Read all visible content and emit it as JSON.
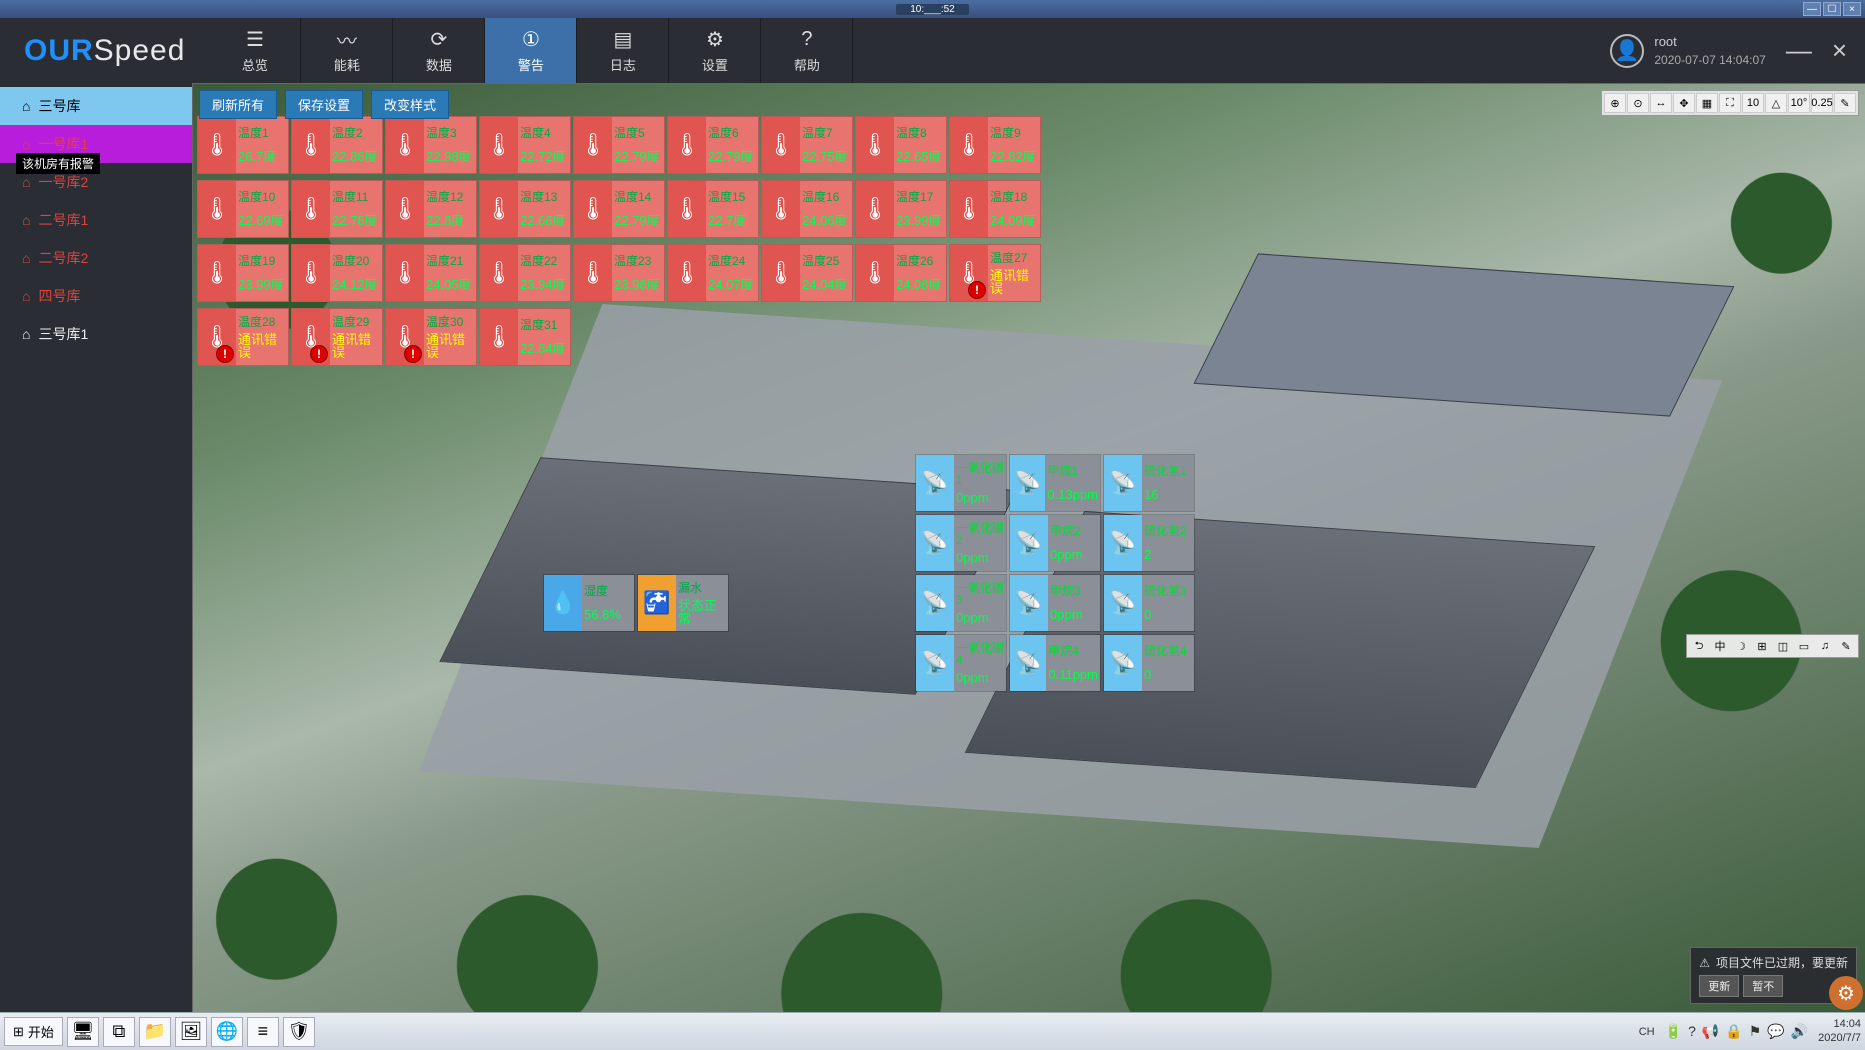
{
  "window": {
    "title_time": "10:___:52",
    "minimize": "—",
    "maximize": "☐",
    "close": "×"
  },
  "app": {
    "logo_part1": "OUR",
    "logo_part2": "Speed",
    "user_name": "root",
    "user_time": "2020-07-07 14:04:07"
  },
  "nav": [
    {
      "icon": "☰",
      "label": "总览"
    },
    {
      "icon": "〰",
      "label": "能耗"
    },
    {
      "icon": "⟳",
      "label": "数据"
    },
    {
      "icon": "①",
      "label": "警告",
      "active": true
    },
    {
      "icon": "▤",
      "label": "日志"
    },
    {
      "icon": "⚙",
      "label": "设置"
    },
    {
      "icon": "?",
      "label": "帮助"
    }
  ],
  "sidebar": {
    "tooltip": "该机房有报警",
    "items": [
      {
        "label": "三号库",
        "state": "active"
      },
      {
        "label": "一号库1",
        "state": "magenta"
      },
      {
        "label": "一号库2",
        "state": "red"
      },
      {
        "label": "二号库1",
        "state": "red"
      },
      {
        "label": "二号库2",
        "state": "red"
      },
      {
        "label": "四号库",
        "state": "red"
      },
      {
        "label": "三号库1",
        "state": "white"
      }
    ]
  },
  "actions": {
    "refresh": "刷新所有",
    "save": "保存设置",
    "style": "改变样式"
  },
  "vp_toolbar": [
    "⊕",
    "⊙",
    "↔",
    "✥",
    "▦",
    "⛶",
    "10",
    "△",
    "10°",
    "0.25",
    "✎"
  ],
  "vp_toolbar2": [
    "⮌",
    "中",
    "☽",
    "⊞",
    "◫",
    "▭",
    "♫",
    "✎"
  ],
  "temps": {
    "row1": [
      {
        "name": "温度1",
        "val": "26.7度"
      },
      {
        "name": "温度2",
        "val": "22.86度"
      },
      {
        "name": "温度3",
        "val": "22.98度"
      },
      {
        "name": "温度4",
        "val": "22.72度"
      },
      {
        "name": "温度5",
        "val": "22.79度"
      },
      {
        "name": "温度6",
        "val": "22.79度"
      },
      {
        "name": "温度7",
        "val": "22.75度"
      },
      {
        "name": "温度8",
        "val": "22.65度"
      },
      {
        "name": "温度9",
        "val": "22.82度"
      }
    ],
    "row2": [
      {
        "name": "温度10",
        "val": "22.69度"
      },
      {
        "name": "温度11",
        "val": "22.76度"
      },
      {
        "name": "温度12",
        "val": "22.8度"
      },
      {
        "name": "温度13",
        "val": "22.66度"
      },
      {
        "name": "温度14",
        "val": "22.79度"
      },
      {
        "name": "温度15",
        "val": "22.7度"
      },
      {
        "name": "温度16",
        "val": "24.06度"
      },
      {
        "name": "温度17",
        "val": "23.99度"
      },
      {
        "name": "温度18",
        "val": "24.09度"
      }
    ],
    "row3": [
      {
        "name": "温度19",
        "val": "23.99度"
      },
      {
        "name": "温度20",
        "val": "24.12度"
      },
      {
        "name": "温度21",
        "val": "24.05度"
      },
      {
        "name": "温度22",
        "val": "23.94度"
      },
      {
        "name": "温度23",
        "val": "23.98度"
      },
      {
        "name": "温度24",
        "val": "24.07度"
      },
      {
        "name": "温度25",
        "val": "24.04度"
      },
      {
        "name": "温度26",
        "val": "24.08度"
      },
      {
        "name": "温度27",
        "val": "通讯错误",
        "err": true
      }
    ],
    "row4": [
      {
        "name": "温度28",
        "val": "通讯错误",
        "err": true
      },
      {
        "name": "温度29",
        "val": "通讯错误",
        "err": true
      },
      {
        "name": "温度30",
        "val": "通讯错误",
        "err": true
      },
      {
        "name": "温度31",
        "val": "22.84度"
      }
    ]
  },
  "gas": [
    {
      "name": "一氧化碳1",
      "val": "0ppm"
    },
    {
      "name": "甲烷1",
      "val": "0.13ppm"
    },
    {
      "name": "硫化氢1",
      "val": "16"
    },
    {
      "name": "一氧化碳2",
      "val": "0ppm"
    },
    {
      "name": "甲烷2",
      "val": "0ppm"
    },
    {
      "name": "硫化氢2",
      "val": "2"
    },
    {
      "name": "一氧化碳3",
      "val": "0ppm"
    },
    {
      "name": "甲烷3",
      "val": "0ppm"
    },
    {
      "name": "硫化氢3",
      "val": "0"
    },
    {
      "name": "一氧化碳4",
      "val": "0ppm"
    },
    {
      "name": "甲烷4",
      "val": "0.11ppm"
    },
    {
      "name": "硫化氢4",
      "val": "0"
    }
  ],
  "humid": {
    "name": "湿度",
    "val": "56.8%"
  },
  "water": {
    "name": "漏水",
    "val": "状态正常"
  },
  "notice": {
    "text": "项目文件已过期，要更新",
    "btn_update": "更新",
    "btn_later": "暂不"
  },
  "taskbar": {
    "start": "开始",
    "apps": [
      "🖥",
      "⧉",
      "📁",
      "🖼",
      "🌐",
      "≡",
      "🛡"
    ],
    "lang": "CH",
    "tray_icons": [
      "🔋",
      "?",
      "📢",
      "🔒",
      "⚑",
      "💬",
      "🔊"
    ],
    "clock_time": "14:04",
    "clock_date": "2020/7/7"
  },
  "colors": {
    "header_bg": "#2a2d33",
    "accent_blue": "#1e90ff",
    "active_tab": "#3d70a8",
    "side_active": "#7ec8f0",
    "side_alert": "#b81ddb",
    "side_red": "#e0423c",
    "temp_tile": "#e87470",
    "temp_icon": "#e15550",
    "gas_icon": "#6cc4f0",
    "gas_body": "#8a8f98",
    "humid_icon": "#4aa8e8",
    "water_icon": "#f0a030",
    "val_green": "#00ff55",
    "btn_blue": "#2b7ab8"
  }
}
